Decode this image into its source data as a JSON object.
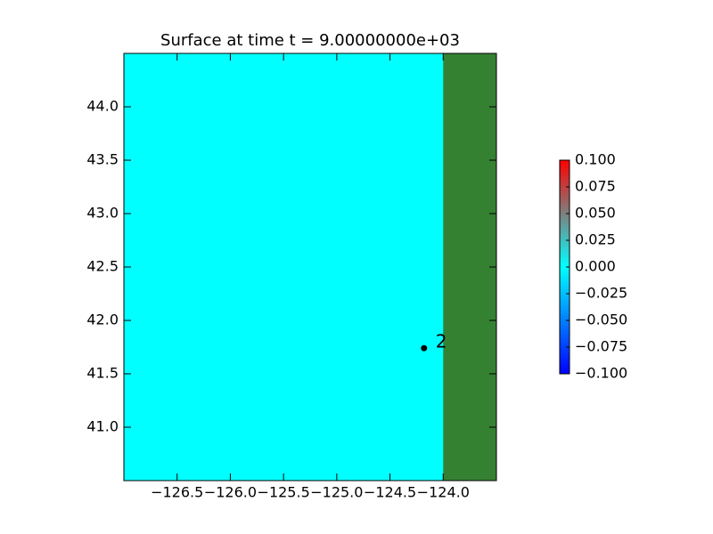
{
  "chart_data": {
    "type": "heatmap",
    "title": "Surface at time t = 9.00000000e+03",
    "xlim": [
      -127.0,
      -123.5
    ],
    "ylim": [
      40.5,
      44.5
    ],
    "xticks": [
      {
        "value": -126.5,
        "label": "−126.5"
      },
      {
        "value": -126.0,
        "label": "−126.0"
      },
      {
        "value": -125.5,
        "label": "−125.5"
      },
      {
        "value": -125.0,
        "label": "−125.0"
      },
      {
        "value": -124.5,
        "label": "−124.5"
      },
      {
        "value": -124.0,
        "label": "−124.0"
      }
    ],
    "yticks": [
      {
        "value": 41.0,
        "label": "41.0"
      },
      {
        "value": 41.5,
        "label": "41.5"
      },
      {
        "value": 42.0,
        "label": "42.0"
      },
      {
        "value": 42.5,
        "label": "42.5"
      },
      {
        "value": 43.0,
        "label": "43.0"
      },
      {
        "value": 43.5,
        "label": "43.5"
      },
      {
        "value": 44.0,
        "label": "44.0"
      }
    ],
    "water_color": "#00ffff",
    "land_color": "#358132",
    "land_x": -124.0,
    "gauges": [
      {
        "label": "2",
        "x": -124.18,
        "y": 41.74
      }
    ],
    "colorbar": {
      "clim": [
        -0.1,
        0.1
      ],
      "colors": [
        "#0000ff",
        "#00ffff",
        "#ff0000"
      ],
      "ticks": [
        {
          "value": 0.1,
          "label": "0.100"
        },
        {
          "value": 0.075,
          "label": "0.075"
        },
        {
          "value": 0.05,
          "label": "0.050"
        },
        {
          "value": 0.025,
          "label": "0.025"
        },
        {
          "value": 0,
          "label": "0.000"
        },
        {
          "value": -0.025,
          "label": "−0.025"
        },
        {
          "value": -0.05,
          "label": "−0.050"
        },
        {
          "value": -0.075,
          "label": "−0.075"
        },
        {
          "value": -0.1,
          "label": "−0.100"
        }
      ]
    }
  }
}
